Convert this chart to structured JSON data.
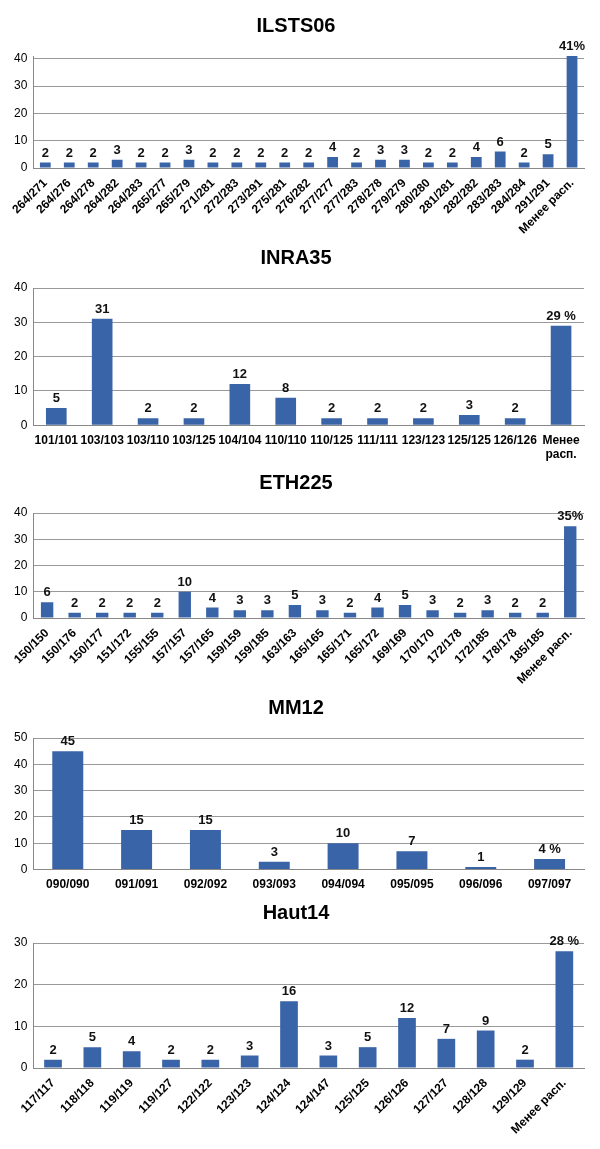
{
  "chart_data": [
    {
      "type": "bar",
      "title": "ILSTS06",
      "categories": [
        "264/271",
        "264/276",
        "264/278",
        "264/282",
        "264/283",
        "265/277",
        "265/279",
        "271/281",
        "272/283",
        "273/291",
        "275/281",
        "276/282",
        "277/277",
        "277/283",
        "278/278",
        "279/279",
        "280/280",
        "281/281",
        "282/282",
        "283/283",
        "284/284",
        "291/291",
        "Менее расп."
      ],
      "values": [
        2,
        2,
        2,
        3,
        2,
        2,
        3,
        2,
        2,
        2,
        2,
        2,
        4,
        2,
        3,
        3,
        2,
        2,
        4,
        6,
        2,
        5,
        41
      ],
      "value_labels": [
        "2",
        "2",
        "2",
        "3",
        "2",
        "2",
        "3",
        "2",
        "2",
        "2",
        "2",
        "2",
        "4",
        "2",
        "3",
        "3",
        "2",
        "2",
        "4",
        "6",
        "2",
        "5",
        "41%"
      ],
      "color": "#3a64a8",
      "ylim": [
        0,
        41
      ],
      "yticks": [
        0,
        10,
        20,
        30,
        40
      ],
      "grid": "y",
      "legend": false
    },
    {
      "type": "bar",
      "title": "INRA35",
      "categories": [
        "101/101",
        "103/103",
        "103/110",
        "103/125",
        "104/104",
        "110/110",
        "110/125",
        "111/111",
        "123/123",
        "125/125",
        "126/126",
        "Менее расп."
      ],
      "values": [
        5,
        31,
        2,
        2,
        12,
        8,
        2,
        2,
        2,
        3,
        2,
        29
      ],
      "value_labels": [
        "5",
        "31",
        "2",
        "2",
        "12",
        "8",
        "2",
        "2",
        "2",
        "3",
        "2",
        "29 %"
      ],
      "color": "#3a64a8",
      "ylim": [
        0,
        40
      ],
      "yticks": [
        0,
        10,
        20,
        30,
        40
      ],
      "grid": "y",
      "legend": false
    },
    {
      "type": "bar",
      "title": "ETH225",
      "categories": [
        "150/150",
        "150/176",
        "150/177",
        "151/172",
        "155/155",
        "157/157",
        "157/165",
        "159/159",
        "159/185",
        "163/163",
        "165/165",
        "165/171",
        "165/172",
        "169/169",
        "170/170",
        "172/178",
        "172/185",
        "178/178",
        "185/185",
        "Менее расп."
      ],
      "values": [
        6,
        2,
        2,
        2,
        2,
        10,
        4,
        3,
        3,
        5,
        3,
        2,
        4,
        5,
        3,
        2,
        3,
        2,
        2,
        35
      ],
      "value_labels": [
        "6",
        "2",
        "2",
        "2",
        "2",
        "10",
        "4",
        "3",
        "3",
        "5",
        "3",
        "2",
        "4",
        "5",
        "3",
        "2",
        "3",
        "2",
        "2",
        "35%"
      ],
      "color": "#3a64a8",
      "ylim": [
        0,
        40
      ],
      "yticks": [
        0,
        10,
        20,
        30,
        40
      ],
      "grid": "y",
      "legend": false
    },
    {
      "type": "bar",
      "title": "MM12",
      "categories": [
        "090/090",
        "091/091",
        "092/092",
        "093/093",
        "094/094",
        "095/095",
        "096/096",
        "097/097"
      ],
      "values": [
        45,
        15,
        15,
        3,
        10,
        7,
        1,
        4
      ],
      "value_labels": [
        "45",
        "15",
        "15",
        "3",
        "10",
        "7",
        "1",
        "4 %"
      ],
      "color": "#3a64a8",
      "ylim": [
        0,
        50
      ],
      "yticks": [
        0,
        10,
        20,
        30,
        40,
        50
      ],
      "grid": "y",
      "legend": false
    },
    {
      "type": "bar",
      "title": "Haut14",
      "categories": [
        "117/117",
        "118/118",
        "119/119",
        "119/127",
        "122/122",
        "123/123",
        "124/124",
        "124/147",
        "125/125",
        "126/126",
        "127/127",
        "128/128",
        "129/129",
        "Менее расп."
      ],
      "values": [
        2,
        5,
        4,
        2,
        2,
        3,
        16,
        3,
        5,
        12,
        7,
        9,
        2,
        28
      ],
      "value_labels": [
        "2",
        "5",
        "4",
        "2",
        "2",
        "3",
        "16",
        "3",
        "5",
        "12",
        "7",
        "9",
        "2",
        "28 %"
      ],
      "color": "#3a64a8",
      "ylim": [
        0,
        30
      ],
      "yticks": [
        0,
        10,
        20,
        30
      ],
      "grid": "y",
      "legend": false
    }
  ]
}
